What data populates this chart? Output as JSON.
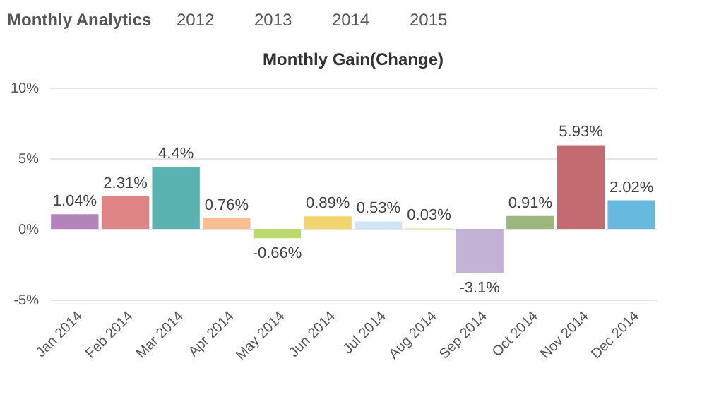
{
  "chart_data": {
    "type": "bar",
    "title": "Monthly Gain(Change)",
    "annotations": [
      "Monthly Analytics",
      "2012",
      "2013",
      "2014",
      "2015"
    ],
    "categories": [
      "Jan 2014",
      "Feb 2014",
      "Mar 2014",
      "Apr 2014",
      "May 2014",
      "Jun 2014",
      "Jul 2014",
      "Aug 2014",
      "Sep 2014",
      "Oct 2014",
      "Nov 2014",
      "Dec 2014"
    ],
    "values": [
      1.04,
      2.31,
      4.4,
      0.76,
      -0.66,
      0.89,
      0.53,
      0.03,
      -3.1,
      0.91,
      5.93,
      2.02
    ],
    "value_labels": [
      "1.04%",
      "2.31%",
      "4.4%",
      "0.76%",
      "-0.66%",
      "0.89%",
      "0.53%",
      "0.03%",
      "-3.1%",
      "0.91%",
      "5.93%",
      "2.02%"
    ],
    "colors": [
      "#b284b9",
      "#e08585",
      "#5ab3b0",
      "#fdbf92",
      "#bcd96e",
      "#f2d56e",
      "#cfe5f5",
      "#d8d36a",
      "#c3b1d6",
      "#9bb77d",
      "#c46b72",
      "#67b9e0"
    ],
    "ylim": [
      -5,
      10
    ],
    "yticks": [
      {
        "value": -5,
        "label": "-5%"
      },
      {
        "value": 0,
        "label": "0%"
      },
      {
        "value": 5,
        "label": "5%"
      },
      {
        "value": 10,
        "label": "10%"
      }
    ],
    "grid": "y"
  }
}
